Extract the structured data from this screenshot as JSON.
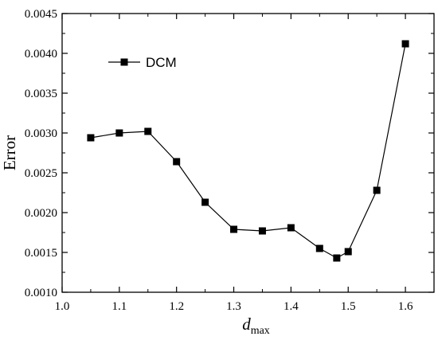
{
  "chart_data": {
    "type": "line",
    "title": "",
    "xlabel": "d",
    "xlabel_sub": "max",
    "ylabel": "Error",
    "xlim": [
      1.0,
      1.65
    ],
    "ylim": [
      0.001,
      0.0045
    ],
    "x_ticks": [
      "1.0",
      "1.1",
      "1.2",
      "1.3",
      "1.4",
      "1.5",
      "1.6"
    ],
    "y_ticks": [
      "0.0010",
      "0.0015",
      "0.0020",
      "0.0025",
      "0.0030",
      "0.0035",
      "0.0040",
      "0.0045"
    ],
    "grid": false,
    "legend_position": "top-left",
    "series": [
      {
        "name": "DCM",
        "marker": "square",
        "color": "#000000",
        "x": [
          1.05,
          1.1,
          1.15,
          1.2,
          1.25,
          1.3,
          1.35,
          1.4,
          1.45,
          1.48,
          1.5,
          1.55,
          1.6
        ],
        "y": [
          0.00294,
          0.003,
          0.00302,
          0.00264,
          0.00213,
          0.00179,
          0.00177,
          0.00181,
          0.00155,
          0.00143,
          0.00151,
          0.00228,
          0.00412
        ]
      }
    ]
  }
}
